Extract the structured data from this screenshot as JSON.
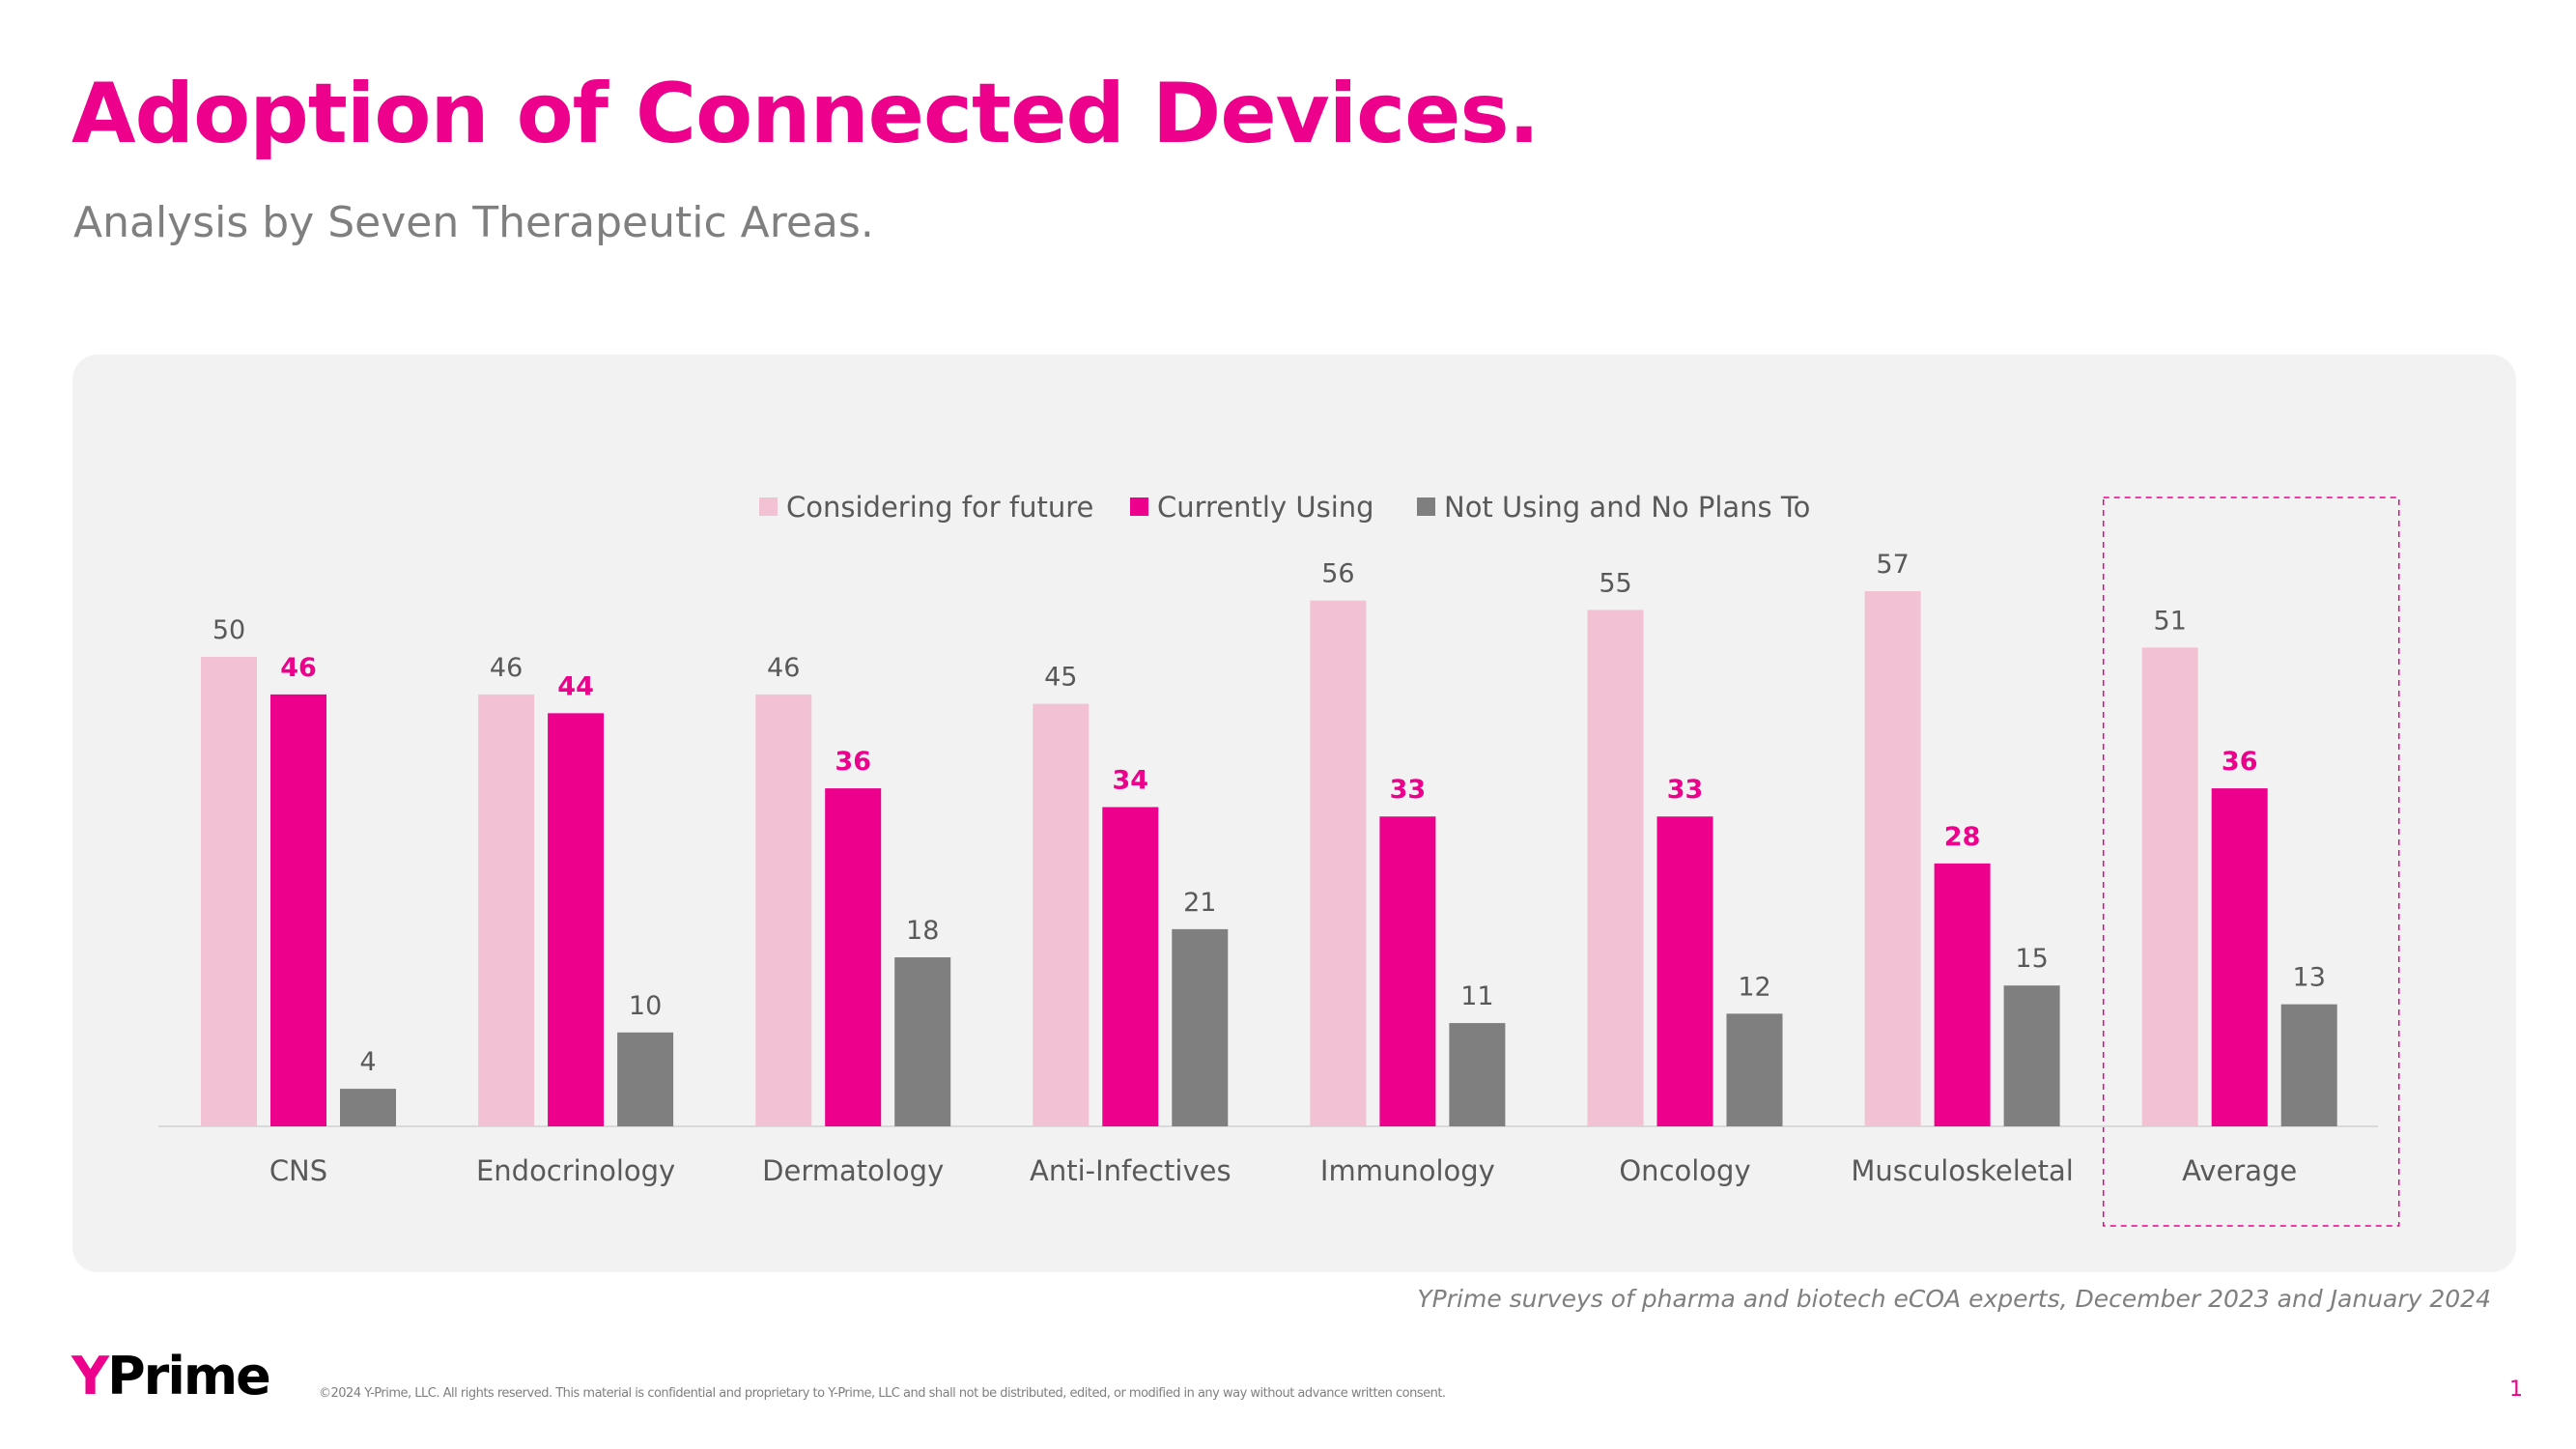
{
  "header": {
    "title": "Adoption of Connected Devices.",
    "subtitle": "Analysis by Seven Therapeutic Areas."
  },
  "footer": {
    "source": "YPrime surveys of pharma and biotech eCOA experts, December 2023 and January 2024",
    "logo_text": "YPrime",
    "copyright": "©2024 Y-Prime, LLC. All rights reserved. This material is confidential and proprietary to Y-Prime, LLC and shall not be distributed, edited, or modified in any way without advance written consent.",
    "page_number": "1"
  },
  "chart_data": {
    "type": "bar",
    "title": "",
    "xlabel": "",
    "ylabel": "",
    "ylim": [
      0,
      60
    ],
    "grid": false,
    "legend_position": "top",
    "categories": [
      "CNS",
      "Endocrinology",
      "Dermatology",
      "Anti-Infectives",
      "Immunology",
      "Oncology",
      "Musculoskeletal",
      "Average"
    ],
    "highlighted_category": "Average",
    "series": [
      {
        "name": "Considering for future",
        "color": "#f2c2d4",
        "label_color": "#595959",
        "label_bold": false,
        "values": [
          50,
          46,
          46,
          45,
          56,
          55,
          57,
          51
        ]
      },
      {
        "name": "Currently Using",
        "color": "#ec008c",
        "label_color": "#ec008c",
        "label_bold": true,
        "values": [
          46,
          44,
          36,
          34,
          33,
          33,
          28,
          36
        ]
      },
      {
        "name": "Not Using and No Plans To",
        "color": "#7f7f7f",
        "label_color": "#595959",
        "label_bold": false,
        "values": [
          4,
          10,
          18,
          21,
          11,
          12,
          15,
          13
        ]
      }
    ]
  }
}
